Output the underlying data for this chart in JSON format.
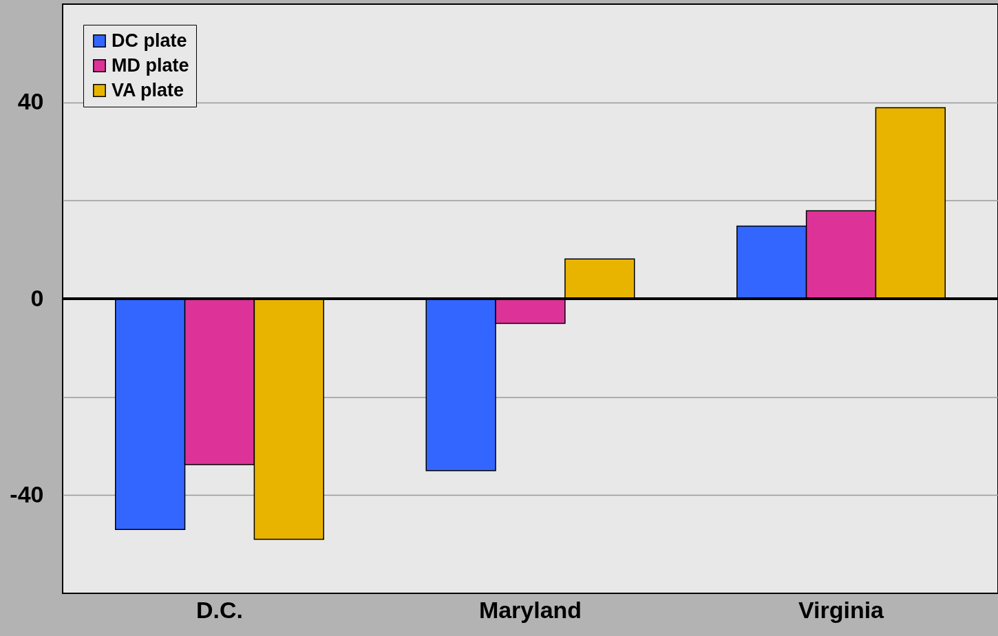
{
  "chart_data": {
    "type": "bar",
    "categories": [
      "D.C.",
      "Maryland",
      "Virginia"
    ],
    "series": [
      {
        "name": "DC plate",
        "color": "#3366ff",
        "values": [
          -47,
          -35,
          14.8
        ]
      },
      {
        "name": "MD plate",
        "color": "#dd3399",
        "values": [
          -33.8,
          -5,
          17.9
        ]
      },
      {
        "name": "VA plate",
        "color": "#e8b400",
        "values": [
          -49,
          8.1,
          38.9
        ]
      }
    ],
    "ylim": [
      -60,
      60
    ],
    "yticks": [
      {
        "value": -40,
        "label": "-40"
      },
      {
        "value": -20,
        "label": null
      },
      0,
      {
        "value": 20,
        "label": null
      },
      40
    ],
    "grid": "y",
    "legend": "top left"
  }
}
